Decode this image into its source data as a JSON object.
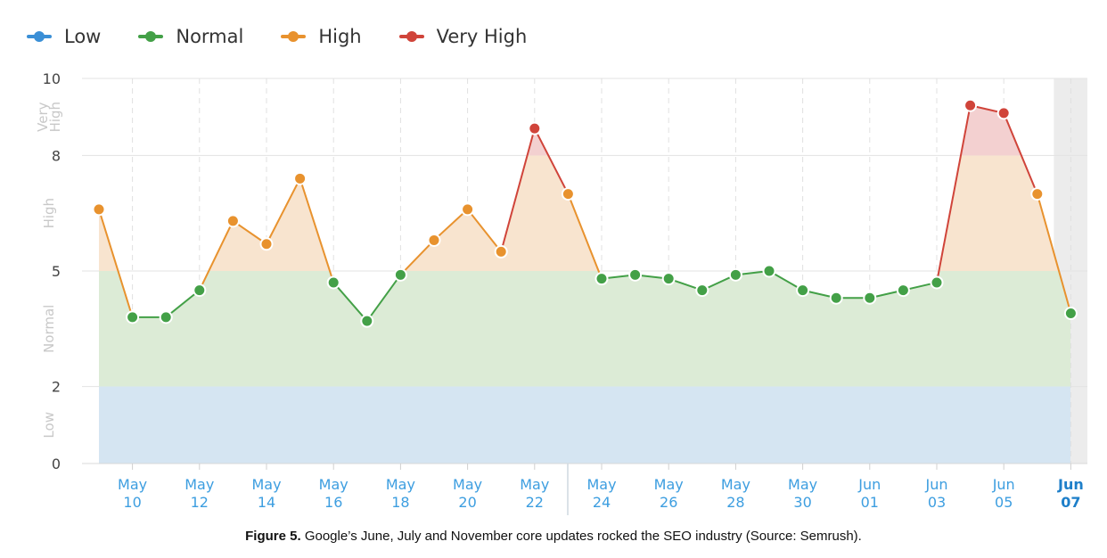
{
  "legend": {
    "items": [
      {
        "label": "Low",
        "color": "#3a8fd6"
      },
      {
        "label": "Normal",
        "color": "#43a047"
      },
      {
        "label": "High",
        "color": "#e8922e"
      },
      {
        "label": "Very High",
        "color": "#d0443a"
      }
    ]
  },
  "caption": {
    "label": "Figure 5.",
    "text": "Google’s June, July and November core updates rocked the SEO industry (Source: Semrush)."
  },
  "chart_data": {
    "type": "line",
    "title": "",
    "xlabel": "",
    "ylabel": "",
    "ylim": [
      0,
      10
    ],
    "yticks": [
      0,
      2,
      5,
      8,
      10
    ],
    "bands": [
      {
        "label": "Low",
        "from": 0,
        "to": 2,
        "fill": "#d5e5f2"
      },
      {
        "label": "Normal",
        "from": 2,
        "to": 5,
        "fill": "#dcebd6"
      },
      {
        "label": "High",
        "from": 5,
        "to": 8,
        "fill": "#f8e4cf"
      },
      {
        "label": "Very High",
        "from": 8,
        "to": 10,
        "fill": "#f3d0d0"
      }
    ],
    "x_tick_labels": [
      [
        "May",
        "10"
      ],
      [
        "May",
        "12"
      ],
      [
        "May",
        "14"
      ],
      [
        "May",
        "16"
      ],
      [
        "May",
        "18"
      ],
      [
        "May",
        "20"
      ],
      [
        "May",
        "22"
      ],
      [
        "May",
        "24"
      ],
      [
        "May",
        "26"
      ],
      [
        "May",
        "28"
      ],
      [
        "May",
        "30"
      ],
      [
        "Jun",
        "01"
      ],
      [
        "Jun",
        "03"
      ],
      [
        "Jun",
        "05"
      ],
      [
        "Jun",
        "07"
      ]
    ],
    "x": [
      "May 09",
      "May 10",
      "May 11",
      "May 12",
      "May 13",
      "May 14",
      "May 15",
      "May 16",
      "May 17",
      "May 18",
      "May 19",
      "May 20",
      "May 21",
      "May 22",
      "May 23",
      "May 24",
      "May 25",
      "May 26",
      "May 27",
      "May 28",
      "May 29",
      "May 30",
      "May 31",
      "Jun 01",
      "Jun 02",
      "Jun 03",
      "Jun 04",
      "Jun 05",
      "Jun 06",
      "Jun 07"
    ],
    "series": [
      {
        "values": [
          6.6,
          3.8,
          3.8,
          4.5,
          6.3,
          5.7,
          7.4,
          4.7,
          3.7,
          4.9,
          5.8,
          6.6,
          5.5,
          8.7,
          7.0,
          4.8,
          4.9,
          4.8,
          4.5,
          4.9,
          5.0,
          4.5,
          4.3,
          4.3,
          4.5,
          4.7,
          9.3,
          9.1,
          7.0,
          3.9
        ]
      }
    ],
    "level_colors": {
      "Low": "#3a8fd6",
      "Normal": "#43a047",
      "High": "#e8922e",
      "Very High": "#d0443a"
    },
    "grid": true,
    "legend_position": "top-left",
    "highlighted_x": "Jun 07"
  }
}
